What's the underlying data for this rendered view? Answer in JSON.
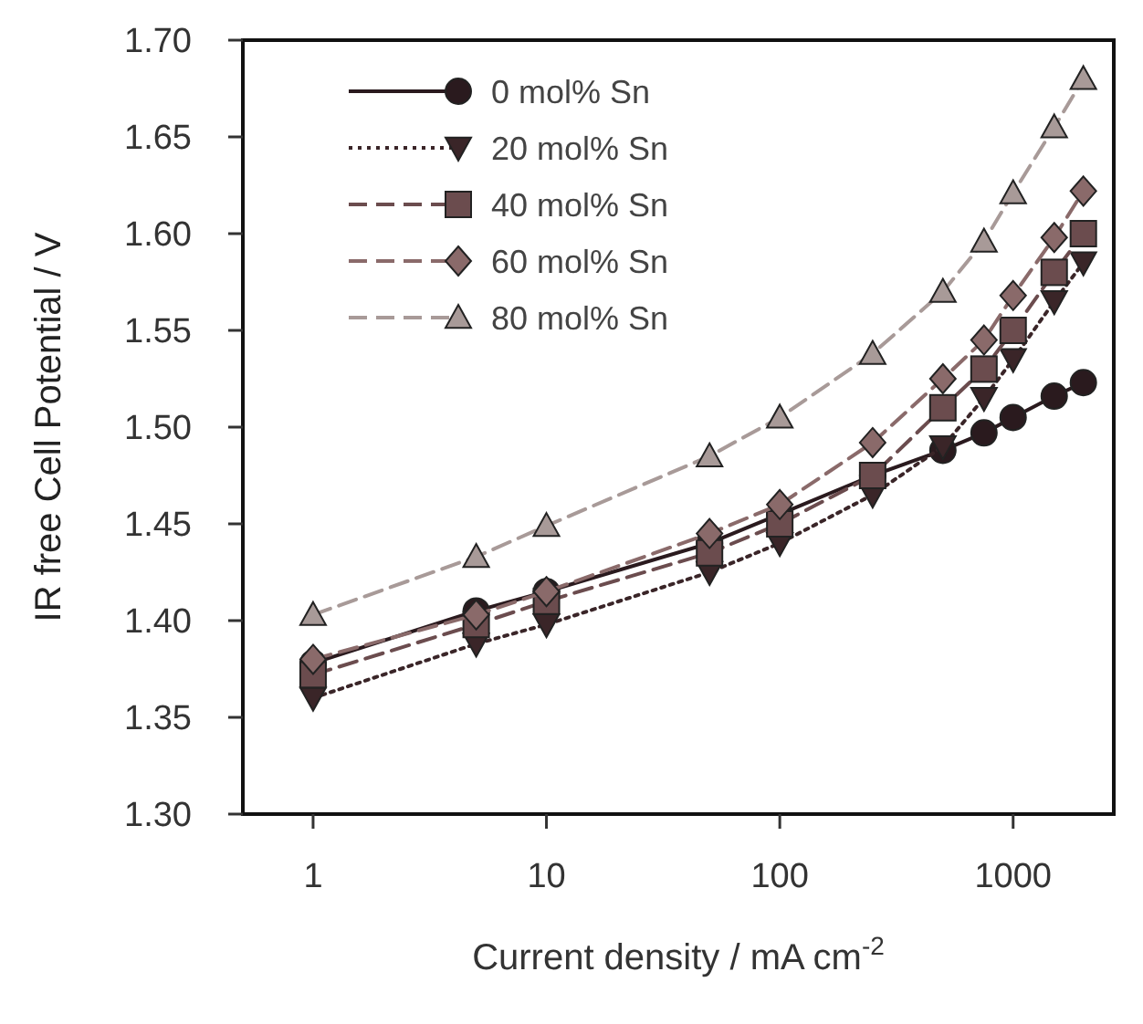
{
  "chart_data": {
    "type": "line",
    "xlabel": "Current density / mA cm$^{-2}$",
    "ylabel": "IR free Cell Potential / V",
    "log": "x",
    "xlim": [
      0.5,
      2700
    ],
    "xticks": [
      1,
      10,
      100,
      1000
    ],
    "ylim": [
      1.3,
      1.7
    ],
    "yticks": [
      {
        "value": 1.3,
        "label": "1.30"
      },
      {
        "value": 1.35,
        "label": "1.35"
      },
      {
        "value": 1.4,
        "label": "1.40"
      },
      {
        "value": 1.45,
        "label": "1.45"
      },
      {
        "value": 1.5,
        "label": "1.50"
      },
      {
        "value": 1.55,
        "label": "1.55"
      },
      {
        "value": 1.6,
        "label": "1.60"
      },
      {
        "value": 1.65,
        "label": "1.65"
      },
      {
        "value": 1.7,
        "label": "1.70"
      }
    ],
    "x": [
      1,
      5,
      10,
      50,
      100,
      250,
      500,
      750,
      1000,
      1500,
      2000
    ],
    "legend": "top left",
    "grid": false,
    "series": [
      {
        "name": "0 mol% Sn",
        "color": "#2a1a1e",
        "marker": "circle",
        "line_style": "solid",
        "values": [
          1.378,
          1.405,
          1.415,
          1.44,
          1.455,
          1.475,
          1.488,
          1.497,
          1.505,
          1.516,
          1.523
        ]
      },
      {
        "name": "20 mol% Sn",
        "color": "#3a2528",
        "marker": "triangle-down",
        "line_style": "dotted",
        "values": [
          1.36,
          1.388,
          1.398,
          1.425,
          1.44,
          1.465,
          1.49,
          1.515,
          1.535,
          1.565,
          1.585
        ]
      },
      {
        "name": "40 mol% Sn",
        "color": "#6b4c4e",
        "marker": "square",
        "line_style": "dashed",
        "values": [
          1.372,
          1.398,
          1.41,
          1.435,
          1.45,
          1.475,
          1.51,
          1.53,
          1.55,
          1.58,
          1.6
        ]
      },
      {
        "name": "60 mol% Sn",
        "color": "#8a6a6a",
        "marker": "diamond",
        "line_style": "dashed",
        "values": [
          1.38,
          1.403,
          1.415,
          1.445,
          1.46,
          1.492,
          1.525,
          1.545,
          1.568,
          1.598,
          1.622
        ]
      },
      {
        "name": "80 mol% Sn",
        "color": "#a89a98",
        "marker": "triangle",
        "line_style": "dashed",
        "values": [
          1.403,
          1.433,
          1.449,
          1.485,
          1.505,
          1.538,
          1.57,
          1.596,
          1.621,
          1.655,
          1.68
        ]
      }
    ]
  }
}
